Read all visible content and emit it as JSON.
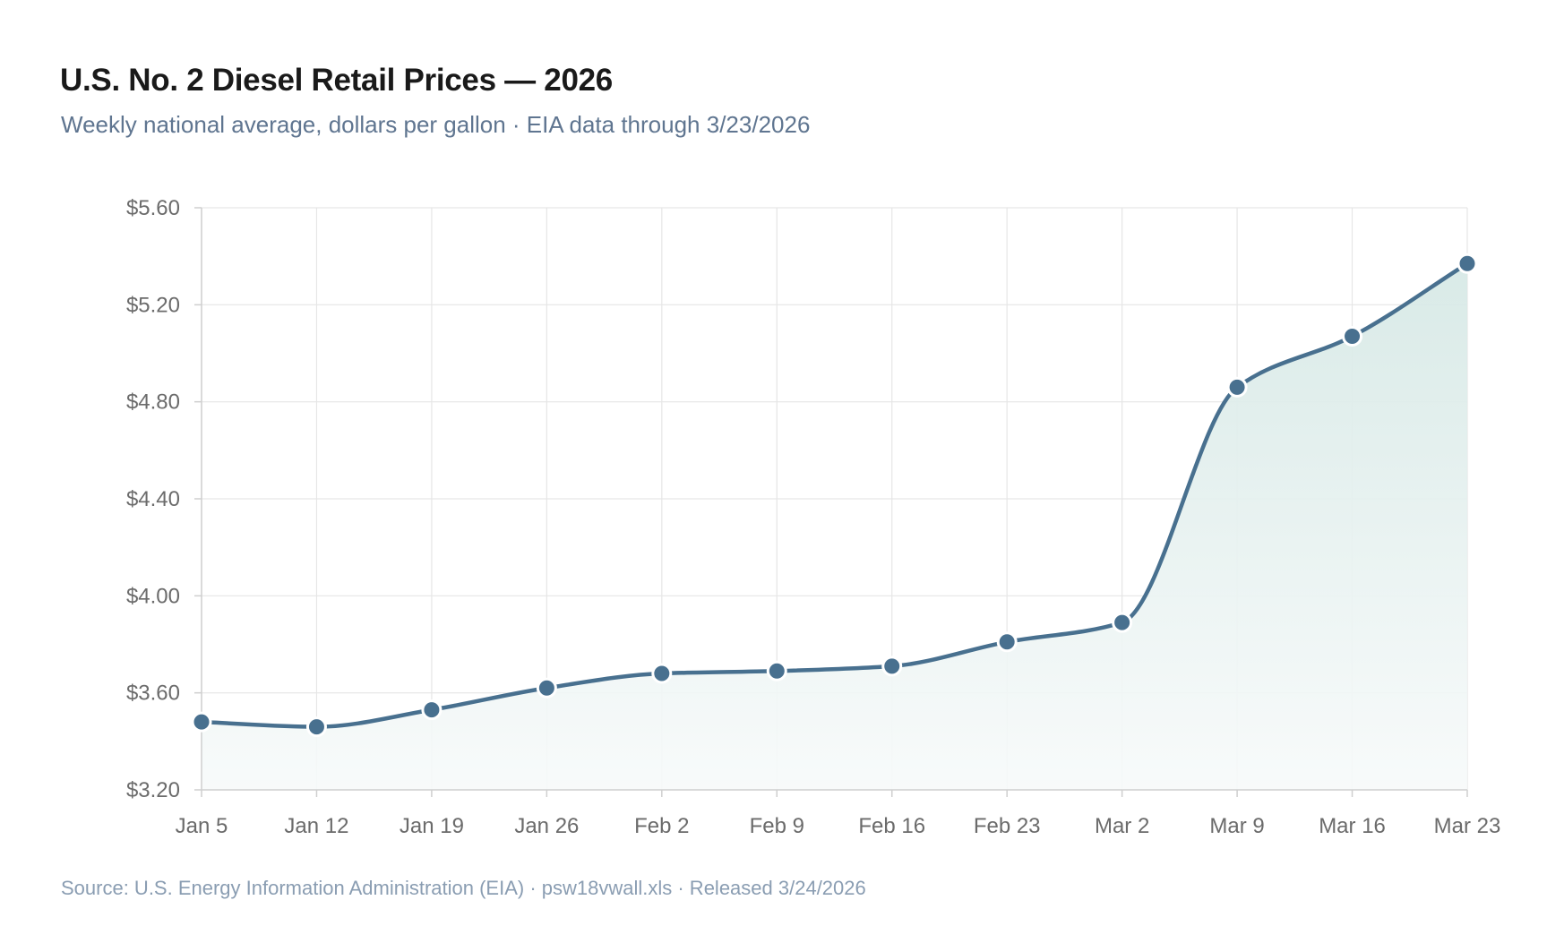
{
  "header": {
    "title": "U.S. No. 2 Diesel Retail Prices — 2026",
    "subtitle": "Weekly national average, dollars per gallon · EIA data through 3/23/2026"
  },
  "footer": {
    "source": "Source: U.S. Energy Information Administration (EIA) · psw18vwall.xls · Released 3/24/2026"
  },
  "chart_data": {
    "type": "line",
    "title": "U.S. No. 2 Diesel Retail Prices — 2026",
    "subtitle": "Weekly national average, dollars per gallon · EIA data through 3/23/2026",
    "xlabel": "",
    "ylabel": "",
    "categories": [
      "Jan 5",
      "Jan 12",
      "Jan 19",
      "Jan 26",
      "Feb 2",
      "Feb 9",
      "Feb 16",
      "Feb 23",
      "Mar 2",
      "Mar 9",
      "Mar 16",
      "Mar 23"
    ],
    "values": [
      3.48,
      3.46,
      3.53,
      3.62,
      3.68,
      3.69,
      3.71,
      3.81,
      3.89,
      4.86,
      5.07,
      5.37
    ],
    "ylim": [
      3.2,
      5.6
    ],
    "yticks": [
      3.2,
      3.6,
      4.0,
      4.4,
      4.8,
      5.2,
      5.6
    ],
    "ytick_labels": [
      "$3.20",
      "$3.60",
      "$4.00",
      "$4.40",
      "$4.80",
      "$5.20",
      "$5.60"
    ],
    "grid": true,
    "legend": "none",
    "colors": {
      "line": "#48708f",
      "area_top": "#d7e9e6",
      "area_bottom": "#f7fafa",
      "grid": "#e6e6e6",
      "axis": "#cfcfcf"
    }
  }
}
